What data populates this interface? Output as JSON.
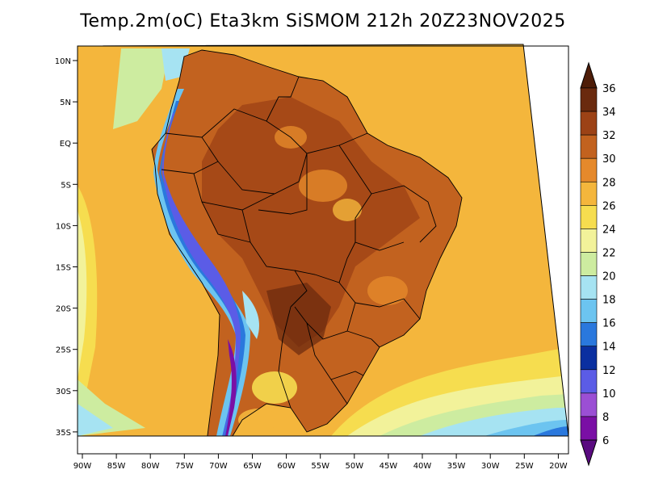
{
  "title": "Temp.2m(oC) Eta3km SiSMOM 212h 20Z23NOV2025",
  "map": {
    "lat_labels": [
      "10N",
      "5N",
      "EQ",
      "5S",
      "10S",
      "15S",
      "20S",
      "25S",
      "30S",
      "35S"
    ],
    "lon_labels": [
      "90W",
      "85W",
      "80W",
      "75W",
      "70W",
      "65W",
      "60W",
      "55W",
      "50W",
      "45W",
      "40W",
      "35W",
      "30W",
      "25W",
      "20W"
    ],
    "ocean_color": "#f4b63c",
    "land_color": "#c2621f"
  },
  "colorbar": {
    "labels": [
      "36",
      "34",
      "32",
      "30",
      "28",
      "26",
      "24",
      "22",
      "20",
      "18",
      "16",
      "14",
      "12",
      "10",
      "8",
      "6"
    ],
    "bands": [
      {
        "from": 34,
        "to": 36,
        "color": "#6a2a0e"
      },
      {
        "from": 32,
        "to": 34,
        "color": "#9c4216"
      },
      {
        "from": 30,
        "to": 32,
        "color": "#c2621f"
      },
      {
        "from": 28,
        "to": 30,
        "color": "#e5892b"
      },
      {
        "from": 26,
        "to": 28,
        "color": "#f4b63c"
      },
      {
        "from": 24,
        "to": 26,
        "color": "#f6dd4f"
      },
      {
        "from": 22,
        "to": 24,
        "color": "#f2f29a"
      },
      {
        "from": 20,
        "to": 22,
        "color": "#cdeca0"
      },
      {
        "from": 18,
        "to": 20,
        "color": "#a6e3f2"
      },
      {
        "from": 16,
        "to": 18,
        "color": "#6cc4f0"
      },
      {
        "from": 14,
        "to": 16,
        "color": "#2a78dd"
      },
      {
        "from": 12,
        "to": 14,
        "color": "#0a2fa0"
      },
      {
        "from": 10,
        "to": 12,
        "color": "#5b5ce6"
      },
      {
        "from": 8,
        "to": 10,
        "color": "#9b4fd4"
      },
      {
        "from": 6,
        "to": 8,
        "color": "#7a0fa5"
      }
    ],
    "top_cap_color": "#4e1d08",
    "bottom_cap_color": "#5a0b80"
  }
}
